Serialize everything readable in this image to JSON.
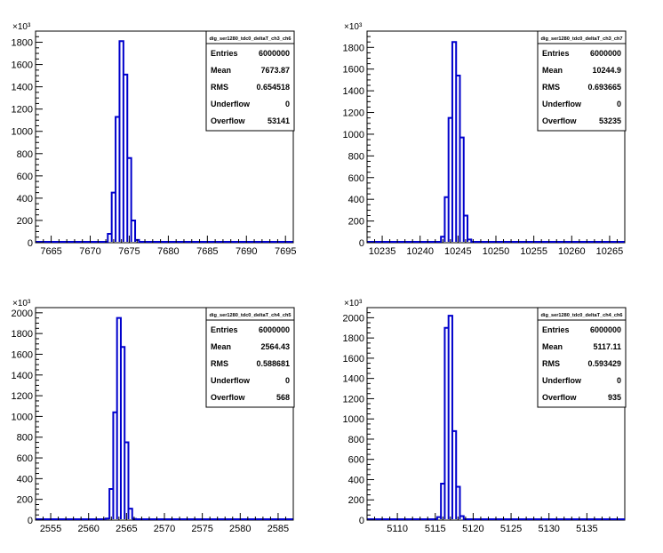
{
  "chart_data": [
    {
      "type": "histogram",
      "title": "dig_ser1280_tdc0_deltaT_ch3_ch6",
      "xlim": [
        7663,
        7696
      ],
      "x_ticks": [
        7665,
        7670,
        7675,
        7680,
        7685,
        7690,
        7695
      ],
      "ylim": [
        0,
        1900
      ],
      "y_ticks": [
        0,
        200,
        400,
        600,
        800,
        1000,
        1200,
        1400,
        1600,
        1800
      ],
      "y_exponent": "×10³",
      "bin_width": 0.5,
      "bins": [
        {
          "x": 7672.5,
          "y": 80
        },
        {
          "x": 7673.0,
          "y": 450
        },
        {
          "x": 7673.5,
          "y": 1130
        },
        {
          "x": 7674.0,
          "y": 1810
        },
        {
          "x": 7674.5,
          "y": 1510
        },
        {
          "x": 7675.0,
          "y": 760
        },
        {
          "x": 7675.5,
          "y": 200
        },
        {
          "x": 7676.0,
          "y": 25
        }
      ],
      "stats": [
        {
          "label": "Entries",
          "value": "6000000"
        },
        {
          "label": "Mean",
          "value": "7673.87"
        },
        {
          "label": "RMS",
          "value": "0.654518"
        },
        {
          "label": "Underflow",
          "value": "0"
        },
        {
          "label": "Overflow",
          "value": "53141"
        }
      ]
    },
    {
      "type": "histogram",
      "title": "dig_ser1280_tdc0_deltaT_ch3_ch7",
      "xlim": [
        10233,
        10267
      ],
      "x_ticks": [
        10235,
        10240,
        10245,
        10250,
        10255,
        10260,
        10265
      ],
      "ylim": [
        0,
        1950
      ],
      "y_ticks": [
        0,
        200,
        400,
        600,
        800,
        1000,
        1200,
        1400,
        1600,
        1800
      ],
      "y_exponent": "×10³",
      "bin_width": 0.5,
      "bins": [
        {
          "x": 10243.0,
          "y": 55
        },
        {
          "x": 10243.5,
          "y": 420
        },
        {
          "x": 10244.0,
          "y": 1150
        },
        {
          "x": 10244.5,
          "y": 1850
        },
        {
          "x": 10245.0,
          "y": 1540
        },
        {
          "x": 10245.5,
          "y": 970
        },
        {
          "x": 10246.0,
          "y": 250
        },
        {
          "x": 10246.5,
          "y": 30
        }
      ],
      "stats": [
        {
          "label": "Entries",
          "value": "6000000"
        },
        {
          "label": "Mean",
          "value": "10244.9"
        },
        {
          "label": "RMS",
          "value": "0.693665"
        },
        {
          "label": "Underflow",
          "value": "0"
        },
        {
          "label": "Overflow",
          "value": "53235"
        }
      ]
    },
    {
      "type": "histogram",
      "title": "dig_ser1280_tdc0_deltaT_ch4_ch5",
      "xlim": [
        2553,
        2587
      ],
      "x_ticks": [
        2555,
        2560,
        2565,
        2570,
        2575,
        2580,
        2585
      ],
      "ylim": [
        0,
        2050
      ],
      "y_ticks": [
        0,
        200,
        400,
        600,
        800,
        1000,
        1200,
        1400,
        1600,
        1800,
        2000
      ],
      "y_exponent": "×10³",
      "bin_width": 0.5,
      "bins": [
        {
          "x": 2562.5,
          "y": 15
        },
        {
          "x": 2563.0,
          "y": 300
        },
        {
          "x": 2563.5,
          "y": 1040
        },
        {
          "x": 2564.0,
          "y": 1950
        },
        {
          "x": 2564.5,
          "y": 1670
        },
        {
          "x": 2565.0,
          "y": 750
        },
        {
          "x": 2565.5,
          "y": 110
        },
        {
          "x": 2566.0,
          "y": 12
        }
      ],
      "stats": [
        {
          "label": "Entries",
          "value": "6000000"
        },
        {
          "label": "Mean",
          "value": "2564.43"
        },
        {
          "label": "RMS",
          "value": "0.588681"
        },
        {
          "label": "Underflow",
          "value": "0"
        },
        {
          "label": "Overflow",
          "value": "568"
        }
      ]
    },
    {
      "type": "histogram",
      "title": "dig_ser1280_tdc0_deltaT_ch4_ch6",
      "xlim": [
        5106,
        5140
      ],
      "x_ticks": [
        5110,
        5115,
        5120,
        5125,
        5130,
        5135
      ],
      "ylim": [
        0,
        2100
      ],
      "y_ticks": [
        0,
        200,
        400,
        600,
        800,
        1000,
        1200,
        1400,
        1600,
        1800,
        2000
      ],
      "y_exponent": "×10³",
      "bin_width": 0.5,
      "bins": [
        {
          "x": 5115.5,
          "y": 30
        },
        {
          "x": 5116.0,
          "y": 360
        },
        {
          "x": 5116.5,
          "y": 1900
        },
        {
          "x": 5117.0,
          "y": 2020
        },
        {
          "x": 5117.5,
          "y": 880
        },
        {
          "x": 5118.0,
          "y": 330
        },
        {
          "x": 5118.5,
          "y": 40
        }
      ],
      "stats": [
        {
          "label": "Entries",
          "value": "6000000"
        },
        {
          "label": "Mean",
          "value": "5117.11"
        },
        {
          "label": "RMS",
          "value": "0.593429"
        },
        {
          "label": "Underflow",
          "value": "0"
        },
        {
          "label": "Overflow",
          "value": "935"
        }
      ]
    }
  ]
}
